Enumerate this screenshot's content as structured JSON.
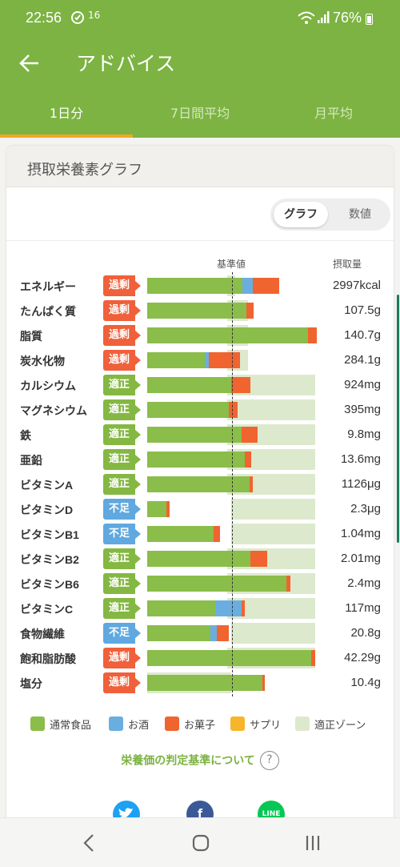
{
  "status": {
    "time": "22:56",
    "notif": "16",
    "battery": "76%"
  },
  "appbar": {
    "title": "アドバイス"
  },
  "tabs": [
    {
      "label": "1日分",
      "active": true
    },
    {
      "label": "7日間平均",
      "active": false
    },
    {
      "label": "月平均",
      "active": false
    }
  ],
  "card": {
    "title": "摂取栄養素グラフ"
  },
  "toggle": {
    "graph": "グラフ",
    "numbers": "数値",
    "selected": "graph"
  },
  "columns": {
    "reference": "基準値",
    "intake": "摂取量"
  },
  "colors": {
    "food": "#8bbd4a",
    "alcohol": "#6aaee0",
    "snack": "#f0642f",
    "supplement": "#f7b52a",
    "zone": "#dde9cc"
  },
  "nutrients": [
    {
      "name": "エネルギー",
      "status": "過剰",
      "level": "over",
      "value": "2997kcal",
      "food": 1.13,
      "alcohol": 0.12,
      "snack": 0.31,
      "zone": [
        0.95,
        1.05
      ]
    },
    {
      "name": "たんぱく質",
      "status": "過剰",
      "level": "over",
      "value": "107.5g",
      "food": 1.18,
      "alcohol": 0,
      "snack": 0.09,
      "zone": [
        0.95,
        1.2
      ]
    },
    {
      "name": "脂質",
      "status": "過剰",
      "level": "over",
      "value": "140.7g",
      "food": 1.91,
      "alcohol": 0,
      "snack": 0.1,
      "zone": [
        0.95,
        1.2
      ]
    },
    {
      "name": "炭水化物",
      "status": "過剰",
      "level": "over",
      "value": "284.1g",
      "food": 0.69,
      "alcohol": 0.05,
      "snack": 0.37,
      "zone": [
        0.95,
        1.2
      ]
    },
    {
      "name": "カルシウム",
      "status": "適正",
      "level": "ok",
      "value": "924mg",
      "food": 1.0,
      "alcohol": 0,
      "snack": 0.23,
      "zone": [
        0.95,
        2.0
      ]
    },
    {
      "name": "マグネシウム",
      "status": "適正",
      "level": "ok",
      "value": "395mg",
      "food": 0.97,
      "alcohol": 0,
      "snack": 0.1,
      "zone": [
        0.95,
        2.0
      ]
    },
    {
      "name": "鉄",
      "status": "適正",
      "level": "ok",
      "value": "9.8mg",
      "food": 1.12,
      "alcohol": 0,
      "snack": 0.19,
      "zone": [
        0.95,
        2.0
      ]
    },
    {
      "name": "亜鉛",
      "status": "適正",
      "level": "ok",
      "value": "13.6mg",
      "food": 1.16,
      "alcohol": 0,
      "snack": 0.08,
      "zone": [
        0.95,
        2.0
      ]
    },
    {
      "name": "ビタミンA",
      "status": "適正",
      "level": "ok",
      "value": "1126μg",
      "food": 1.22,
      "alcohol": 0,
      "snack": 0.04,
      "zone": [
        0.95,
        2.0
      ]
    },
    {
      "name": "ビタミンD",
      "status": "不足",
      "level": "low",
      "value": "2.3μg",
      "food": 0.23,
      "alcohol": 0,
      "snack": 0.04,
      "zone": [
        1.0,
        2.0
      ]
    },
    {
      "name": "ビタミンB1",
      "status": "不足",
      "level": "low",
      "value": "1.04mg",
      "food": 0.79,
      "alcohol": 0,
      "snack": 0.08,
      "zone": [
        1.0,
        2.0
      ]
    },
    {
      "name": "ビタミンB2",
      "status": "適正",
      "level": "ok",
      "value": "2.01mg",
      "food": 1.23,
      "alcohol": 0,
      "snack": 0.2,
      "zone": [
        0.95,
        2.0
      ]
    },
    {
      "name": "ビタミンB6",
      "status": "適正",
      "level": "ok",
      "value": "2.4mg",
      "food": 1.66,
      "alcohol": 0,
      "snack": 0.05,
      "zone": [
        0.95,
        2.0
      ]
    },
    {
      "name": "ビタミンC",
      "status": "適正",
      "level": "ok",
      "value": "117mg",
      "food": 0.81,
      "alcohol": 0.31,
      "snack": 0.04,
      "zone": [
        0.95,
        2.0
      ]
    },
    {
      "name": "食物繊維",
      "status": "不足",
      "level": "low",
      "value": "20.8g",
      "food": 0.75,
      "alcohol": 0.08,
      "snack": 0.14,
      "zone": [
        1.0,
        2.0
      ]
    },
    {
      "name": "飽和脂肪酸",
      "status": "過剰",
      "level": "over",
      "value": "42.29g",
      "food": 1.95,
      "alcohol": 0,
      "snack": 0.05,
      "zone": [
        0.95,
        2.0
      ]
    },
    {
      "name": "塩分",
      "status": "過剰",
      "level": "over",
      "value": "10.4g",
      "food": 1.37,
      "alcohol": 0,
      "snack": 0.03,
      "zone": [
        0.0,
        1.0
      ]
    }
  ],
  "legend": [
    {
      "label": "通常食品",
      "color": "#8bbd4a"
    },
    {
      "label": "お酒",
      "color": "#6aaee0"
    },
    {
      "label": "お菓子",
      "color": "#f0642f"
    },
    {
      "label": "サプリ",
      "color": "#f7b52a"
    },
    {
      "label": "適正ゾーン",
      "color": "#dde9cc"
    }
  ],
  "criteria": {
    "label": "栄養価の判定基準について",
    "q": "?"
  },
  "share": [
    {
      "name": "twitter",
      "color": "#1da1f2",
      "glyph": "🐦"
    },
    {
      "name": "facebook",
      "color": "#3b5998",
      "glyph": "f"
    },
    {
      "name": "line",
      "color": "#06c755",
      "glyph": "LINE"
    }
  ]
}
